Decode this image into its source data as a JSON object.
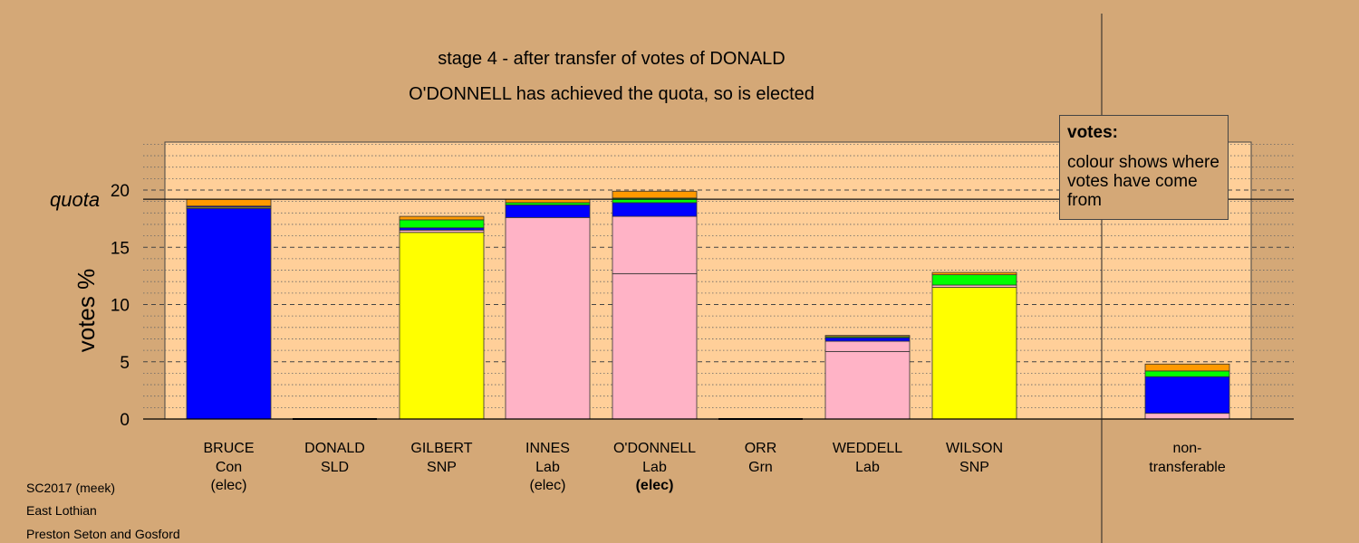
{
  "colors": {
    "background": "#d4a877",
    "plot_background": "#ffcf99",
    "Con": "#0000ff",
    "SLD": "#ff9900",
    "SNP": "#ffff00",
    "Lab": "#ffb3c6",
    "Grn": "#00ff00"
  },
  "titles": {
    "line1": "stage 4 - after transfer of votes of DONALD",
    "line2": "O'DONNELL has achieved the quota, so is elected"
  },
  "legend": {
    "heading": "votes:",
    "text": "colour shows where votes have come from"
  },
  "notes": [
    "SC2017 (meek)",
    "East Lothian",
    "Preston Seton and Gosford"
  ],
  "chart_data": {
    "type": "bar",
    "stacked": true,
    "ylabel": "votes %",
    "yticks": [
      0,
      5,
      10,
      15,
      20
    ],
    "quota": 19.2,
    "quota_label": "quota",
    "grid": true,
    "bars": [
      {
        "name": "BRUCE",
        "party": "Con",
        "status": "(elec)",
        "status_bold": false,
        "segments": [
          {
            "c": "Con",
            "v": 18.4
          },
          {
            "c": "SNP",
            "v": 0.1
          },
          {
            "c": "Con",
            "v": 0.1
          },
          {
            "c": "SLD",
            "v": 0.6
          }
        ]
      },
      {
        "name": "DONALD",
        "party": "SLD",
        "status": "",
        "status_bold": false,
        "segments": []
      },
      {
        "name": "GILBERT",
        "party": "SNP",
        "status": "",
        "status_bold": false,
        "segments": [
          {
            "c": "SNP",
            "v": 16.3
          },
          {
            "c": "Lab",
            "v": 0.2
          },
          {
            "c": "Con",
            "v": 0.2
          },
          {
            "c": "Grn",
            "v": 0.7
          },
          {
            "c": "SLD",
            "v": 0.3
          }
        ]
      },
      {
        "name": "INNES",
        "party": "Lab",
        "status": "(elec)",
        "status_bold": false,
        "segments": [
          {
            "c": "Lab",
            "v": 17.6
          },
          {
            "c": "Con",
            "v": 1.1
          },
          {
            "c": "Grn",
            "v": 0.2
          },
          {
            "c": "SLD",
            "v": 0.3
          }
        ]
      },
      {
        "name": "O'DONNELL",
        "party": "Lab",
        "status": "(elec)",
        "status_bold": true,
        "segments": [
          {
            "c": "Lab",
            "v": 12.7
          },
          {
            "c": "Lab",
            "v": 5.0
          },
          {
            "c": "Con",
            "v": 1.2
          },
          {
            "c": "Grn",
            "v": 0.4
          },
          {
            "c": "SLD",
            "v": 0.6
          }
        ]
      },
      {
        "name": "ORR",
        "party": "Grn",
        "status": "",
        "status_bold": false,
        "segments": []
      },
      {
        "name": "WEDDELL",
        "party": "Lab",
        "status": "",
        "status_bold": false,
        "segments": [
          {
            "c": "Lab",
            "v": 5.9
          },
          {
            "c": "Lab",
            "v": 0.9
          },
          {
            "c": "Con",
            "v": 0.3
          },
          {
            "c": "Grn",
            "v": 0.1
          },
          {
            "c": "SLD",
            "v": 0.1
          }
        ]
      },
      {
        "name": "WILSON",
        "party": "SNP",
        "status": "",
        "status_bold": false,
        "segments": [
          {
            "c": "SNP",
            "v": 11.5
          },
          {
            "c": "Lab",
            "v": 0.2
          },
          {
            "c": "Grn",
            "v": 0.9
          },
          {
            "c": "SLD",
            "v": 0.2
          }
        ]
      }
    ],
    "nontransferable": {
      "label_line1": "non-",
      "label_line2": "transferable",
      "segments": [
        {
          "c": "Lab",
          "v": 0.5
        },
        {
          "c": "Con",
          "v": 3.2
        },
        {
          "c": "Grn",
          "v": 0.5
        },
        {
          "c": "SLD",
          "v": 0.6
        }
      ]
    }
  }
}
